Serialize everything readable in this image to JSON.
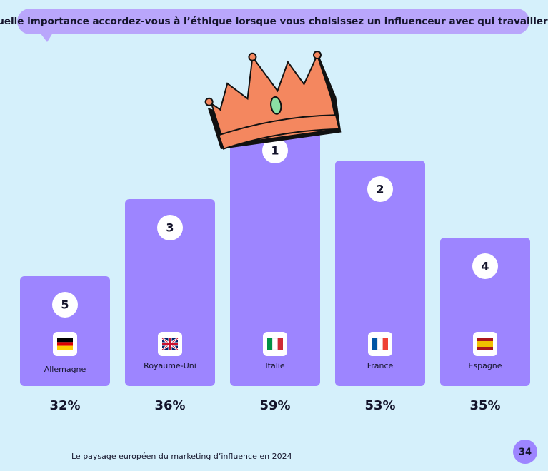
{
  "title": "Quelle importance accordez-vous à l’éthique lorsque vous choisissez un influenceur avec qui travailler ?",
  "items": [
    {
      "rank": 5,
      "country": "Allemagne",
      "percent": "32%"
    },
    {
      "rank": 3,
      "country": "Royaume-Uni",
      "percent": "36%"
    },
    {
      "rank": 1,
      "country": "Italie",
      "percent": "59%"
    },
    {
      "rank": 2,
      "country": "France",
      "percent": "53%"
    },
    {
      "rank": 4,
      "country": "Espagne",
      "percent": "35%"
    }
  ],
  "footer": "Le paysage européen du marketing d’influence en 2024",
  "page": 34
}
